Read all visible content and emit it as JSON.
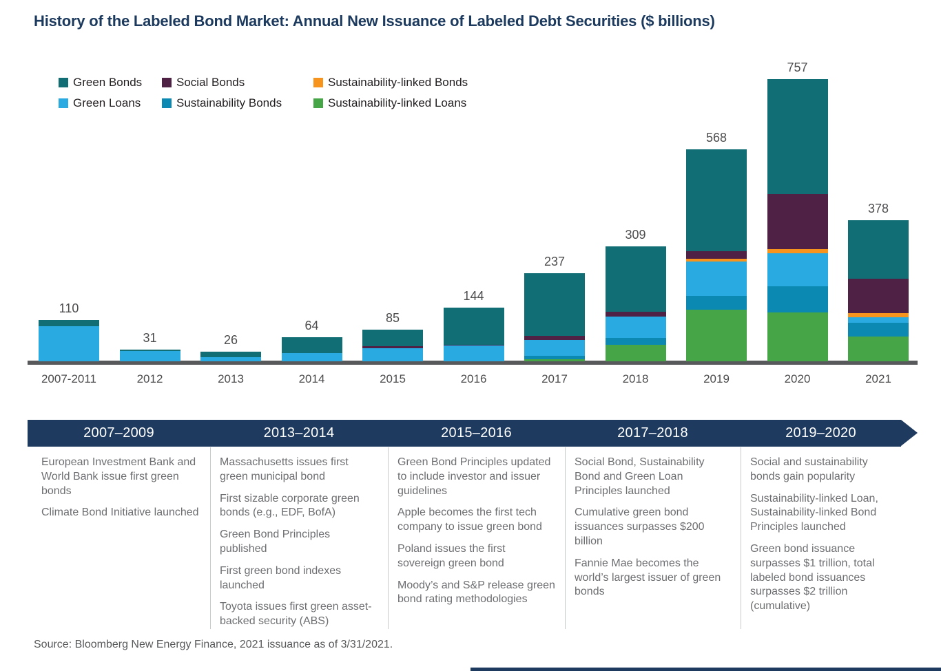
{
  "page": {
    "title": "History of the Labeled Bond Market: Annual New Issuance of Labeled Debt Securities ($ billions)",
    "source": "Source: Bloomberg New Energy Finance, 2021 issuance as of 3/31/2021."
  },
  "colors": {
    "green_bonds": "#116E74",
    "green_loans": "#29ABE2",
    "social_bonds": "#4F2145",
    "sustainability_bonds": "#0B89B2",
    "sustainability_linked_bonds": "#F7941E",
    "sustainability_linked_loans": "#46A547",
    "timeline_band": "#1E3A5F",
    "axis_line": "#58595B",
    "value_label_text": "#4D4D4F",
    "event_text": "#6D6E71",
    "title_text": "#1C3A5E"
  },
  "legend": [
    {
      "label": "Green Bonds",
      "color_key": "green_bonds"
    },
    {
      "label": "Social Bonds",
      "color_key": "social_bonds"
    },
    {
      "label": "Sustainability-linked Bonds",
      "color_key": "sustainability_linked_bonds"
    },
    {
      "label": "Green Loans",
      "color_key": "green_loans"
    },
    {
      "label": "Sustainability Bonds",
      "color_key": "sustainability_bonds"
    },
    {
      "label": "Sustainability-linked Loans",
      "color_key": "sustainability_linked_loans"
    }
  ],
  "chart_data": {
    "type": "bar",
    "stacked": true,
    "title": "History of the Labeled Bond Market: Annual New Issuance of Labeled Debt Securities ($ billions)",
    "xlabel": "",
    "ylabel": "$ billions",
    "ylim": [
      0,
      800
    ],
    "grid": false,
    "legend_position": "top-left",
    "bar_value_labels": true,
    "categories": [
      "2007-2011",
      "2012",
      "2013",
      "2014",
      "2015",
      "2016",
      "2017",
      "2018",
      "2019",
      "2020",
      "2021"
    ],
    "totals": [
      110,
      31,
      26,
      64,
      85,
      144,
      237,
      309,
      568,
      757,
      378
    ],
    "series": [
      {
        "name": "Sustainability-linked Loans",
        "color_key": "sustainability_linked_loans",
        "values": [
          0,
          0,
          0,
          0,
          0,
          0,
          5,
          45,
          139,
          132,
          66
        ]
      },
      {
        "name": "Sustainability Bonds",
        "color_key": "sustainability_bonds",
        "values": [
          0,
          0,
          0,
          0,
          0,
          0,
          9,
          17,
          37,
          70,
          37
        ]
      },
      {
        "name": "Green Loans",
        "color_key": "green_loans",
        "values": [
          95,
          28,
          12,
          22,
          35,
          42,
          43,
          58,
          92,
          88,
          15
        ]
      },
      {
        "name": "Sustainability-linked Bonds",
        "color_key": "sustainability_linked_bonds",
        "values": [
          0,
          0,
          0,
          0,
          0,
          0,
          0,
          0,
          7,
          11,
          12
        ]
      },
      {
        "name": "Social Bonds",
        "color_key": "social_bonds",
        "values": [
          0,
          0,
          0,
          0,
          5,
          2,
          12,
          13,
          20,
          148,
          92
        ]
      },
      {
        "name": "Green Bonds",
        "color_key": "green_bonds",
        "values": [
          15,
          3,
          14,
          42,
          45,
          100,
          168,
          176,
          273,
          308,
          156
        ]
      }
    ],
    "stack_order_note": "series listed bottom-to-top"
  },
  "timeline": {
    "periods": [
      {
        "label": "2007–2009",
        "events": [
          "European Investment Bank and World Bank issue first green bonds",
          "Climate Bond Initiative launched"
        ]
      },
      {
        "label": "2013–2014",
        "events": [
          "Massachusetts issues first green municipal bond",
          "First sizable corporate green bonds (e.g., EDF, BofA)",
          "Green Bond Principles published",
          "First green bond indexes launched",
          "Toyota issues first green asset-backed security (ABS)"
        ]
      },
      {
        "label": "2015–2016",
        "events": [
          "Green Bond Principles updated to include investor and issuer guidelines",
          "Apple becomes the first tech company to issue green bond",
          "Poland issues the first sovereign green bond",
          "Moody’s and S&P release green bond rating methodologies"
        ]
      },
      {
        "label": "2017–2018",
        "events": [
          "Social Bond, Sustainability Bond and Green Loan Principles launched",
          "Cumulative green bond issuances surpasses $200 billion",
          "Fannie Mae becomes the world’s largest issuer of green bonds"
        ]
      },
      {
        "label": "2019–2020",
        "events": [
          "Social and sustainability bonds gain popularity",
          "Sustainability-linked Loan, Sustainability-linked Bond Principles launched",
          "Green bond issuance surpasses $1 trillion, total labeled bond issuances surpasses $2 trillion (cumulative)"
        ]
      }
    ]
  }
}
